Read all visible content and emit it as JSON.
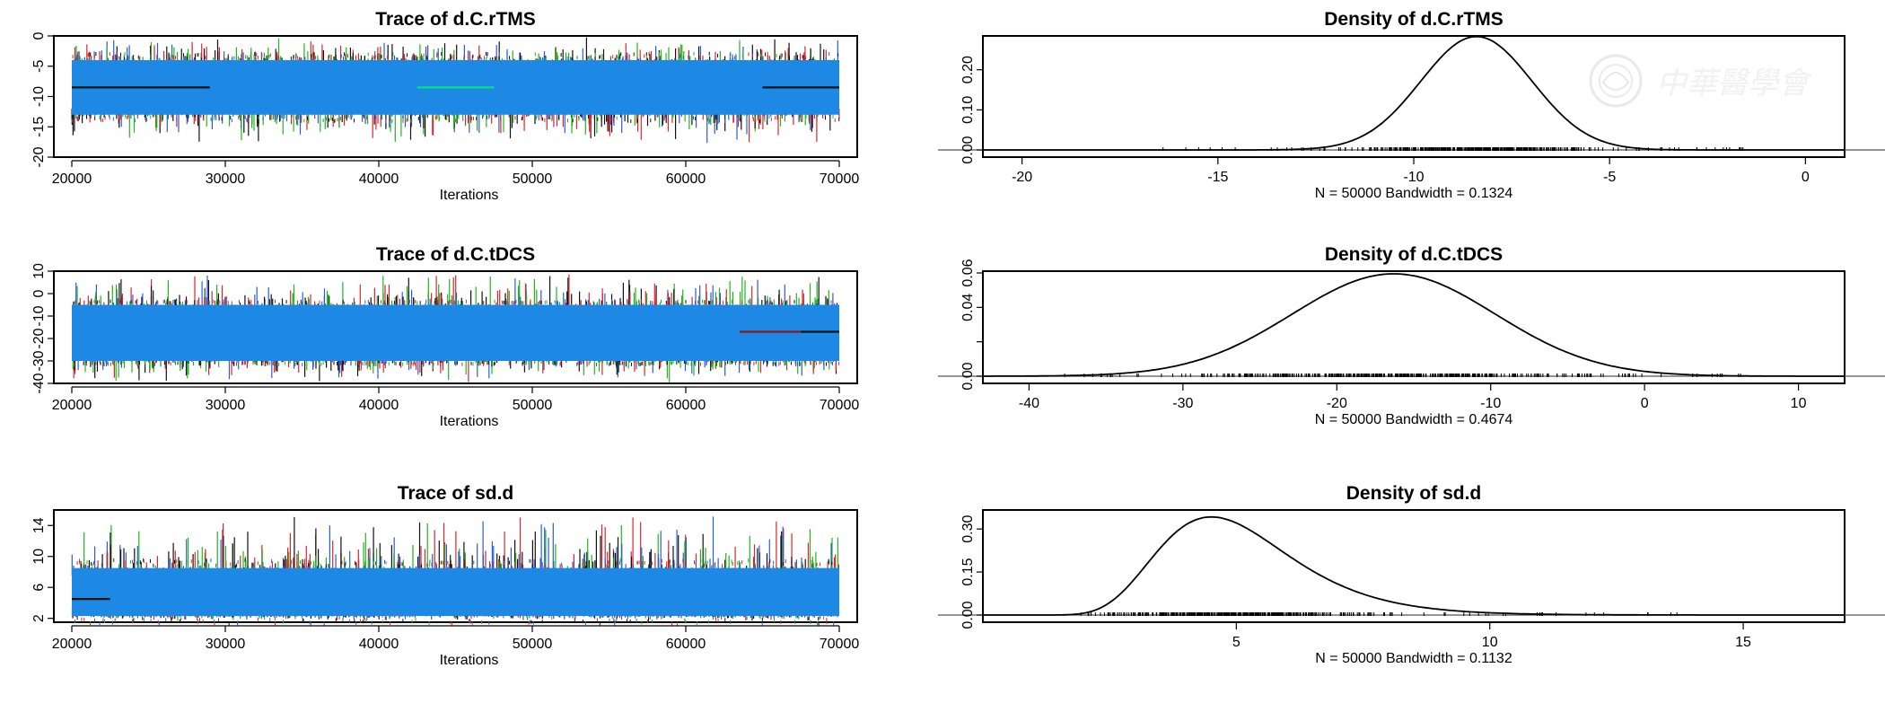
{
  "chart_data": [
    {
      "type": "trace",
      "title": "Trace of d.C.rTMS",
      "xlabel": "Iterations",
      "xlim": [
        20000,
        70000
      ],
      "xticks": [
        "20000",
        "30000",
        "40000",
        "50000",
        "60000",
        "70000"
      ],
      "ylim": [
        -20,
        0
      ],
      "yticks": [
        "0",
        "-5",
        "-10",
        "-15",
        "-20"
      ],
      "band": {
        "low": -13,
        "high": -4,
        "spike_low": -18,
        "spike_high": 0
      },
      "mean_lines": [
        {
          "x0": 20000,
          "x1": 29000,
          "y": -8.5,
          "color": "#111111"
        },
        {
          "x0": 42500,
          "x1": 47500,
          "y": -8.5,
          "color": "#00e676"
        },
        {
          "x0": 65000,
          "x1": 70000,
          "y": -8.5,
          "color": "#111111"
        }
      ]
    },
    {
      "type": "trace",
      "title": "Trace of d.C.tDCS",
      "xlabel": "Iterations",
      "xlim": [
        20000,
        70000
      ],
      "xticks": [
        "20000",
        "30000",
        "40000",
        "50000",
        "60000",
        "70000"
      ],
      "ylim": [
        -40,
        10
      ],
      "yticks": [
        "10",
        "0",
        "-10",
        "-20",
        "-30",
        "-40"
      ],
      "band": {
        "low": -30,
        "high": -5,
        "spike_low": -40,
        "spike_high": 10
      },
      "mean_lines": [
        {
          "x0": 63500,
          "x1": 67500,
          "y": -17,
          "color": "#8b1a1a"
        },
        {
          "x0": 67500,
          "x1": 70000,
          "y": -17,
          "color": "#111111"
        }
      ]
    },
    {
      "type": "trace",
      "title": "Trace of sd.d",
      "xlabel": "Iterations",
      "xlim": [
        20000,
        70000
      ],
      "xticks": [
        "20000",
        "30000",
        "40000",
        "50000",
        "60000",
        "70000"
      ],
      "ylim": [
        1.5,
        16
      ],
      "yticks": [
        "2",
        "6",
        "10",
        "14"
      ],
      "band": {
        "low": 2.3,
        "high": 8.5,
        "spike_low": 1.7,
        "spike_high": 15.5
      },
      "mean_lines": [
        {
          "x0": 20000,
          "x1": 22500,
          "y": 4.5,
          "color": "#111111"
        }
      ]
    },
    {
      "type": "density",
      "title": "Density of d.C.rTMS",
      "xlabel": "N = 50000   Bandwidth = 0.1324",
      "xlim": [
        -21,
        1
      ],
      "xticks": [
        -20,
        -15,
        -10,
        -5,
        0
      ],
      "xtick_labels": [
        "-20",
        "-15",
        "-10",
        "-5",
        "0"
      ],
      "ylim": [
        0,
        0.28
      ],
      "yticks": [
        0.0,
        0.1,
        0.2
      ],
      "ytick_labels": [
        "0.00",
        "0.10",
        "0.20"
      ],
      "curve": {
        "kind": "normal",
        "mean": -8.4,
        "sd": 1.42,
        "peak": 0.283
      },
      "rug": {
        "min": -17.5,
        "max": -1.5
      }
    },
    {
      "type": "density",
      "title": "Density of d.C.tDCS",
      "xlabel": "N = 50000   Bandwidth = 0.4674",
      "xlim": [
        -43,
        13
      ],
      "xticks": [
        -40,
        -30,
        -20,
        -10,
        0,
        10
      ],
      "xtick_labels": [
        "-40",
        "-30",
        "-20",
        "-10",
        "0",
        "10"
      ],
      "ylim": [
        0,
        0.06
      ],
      "yticks": [
        0.0,
        0.02,
        0.04,
        0.06
      ],
      "ytick_labels": [
        "0.00",
        "",
        "0.04",
        "0.06"
      ],
      "curve": {
        "kind": "normal",
        "mean": -16.3,
        "sd": 6.6,
        "peak": 0.0595
      },
      "rug": {
        "min": -39,
        "max": 6.5
      }
    },
    {
      "type": "density",
      "title": "Density of sd.d",
      "xlabel": "N = 50000   Bandwidth = 0.1132",
      "xlim": [
        0,
        17
      ],
      "xticks": [
        5,
        10,
        15
      ],
      "xtick_labels": [
        "5",
        "10",
        "15"
      ],
      "ylim": [
        0,
        0.36
      ],
      "yticks": [
        0.0,
        0.15,
        0.3
      ],
      "ytick_labels": [
        "0.00",
        "0.15",
        "0.30"
      ],
      "curve": {
        "kind": "lognormal",
        "mu": 1.59,
        "sigma": 0.29,
        "peak": 0.342
      },
      "rug": {
        "min": 1.9,
        "max": 13.8
      }
    }
  ],
  "series_colors": [
    "#111111",
    "#d9262e",
    "#1fb51f",
    "#2a5bd7"
  ],
  "band_color": "#1e88e5",
  "watermark": {
    "glyphs": "中華醫學會"
  }
}
